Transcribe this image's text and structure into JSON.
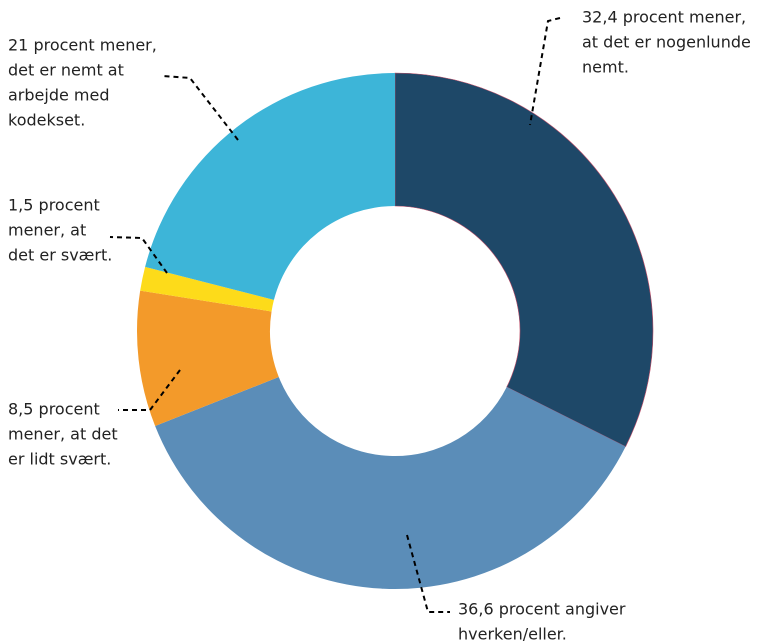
{
  "chart_data": {
    "type": "donut",
    "values": [
      32.4,
      36.6,
      8.5,
      1.5,
      21
    ],
    "value_labels": [
      [
        "32,4 procent mener,",
        "at det er nogenlunde",
        "nemt."
      ],
      [
        "36,6 procent angiver",
        "hverken/eller."
      ],
      [
        "8,5 procent",
        "mener, at det",
        "er lidt svært."
      ],
      [
        "1,5 procent",
        "mener, at",
        "det er svært."
      ],
      [
        "21 procent mener,",
        "det er nemt at",
        "arbejde med",
        "kodekset."
      ]
    ],
    "colors": [
      "#1e4868",
      "#5b8db8",
      "#f39a2a",
      "#fddb1a",
      "#3db5d8"
    ]
  }
}
